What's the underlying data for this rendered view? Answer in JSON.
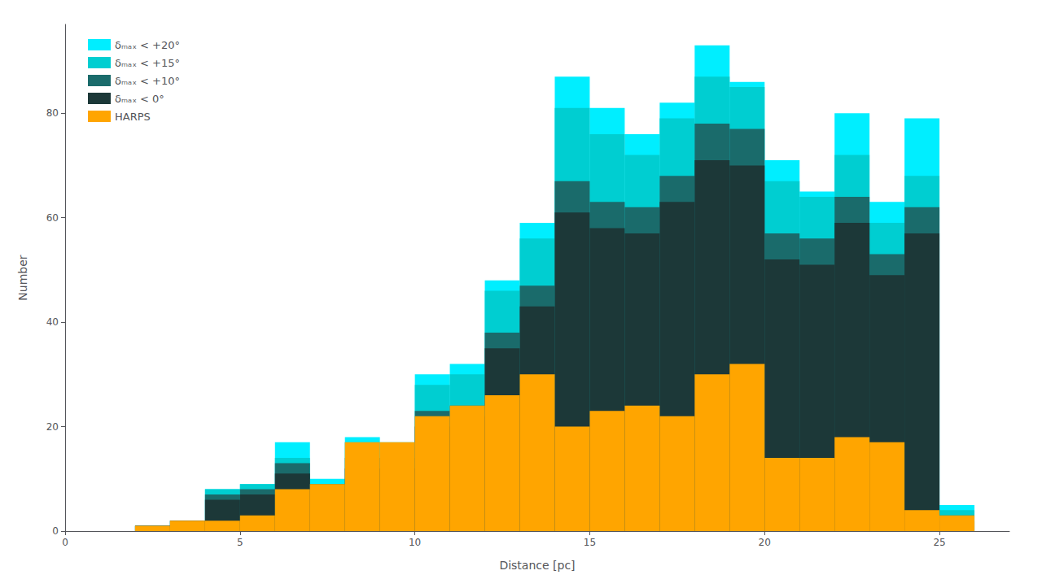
{
  "chart_data": {
    "type": "histogram",
    "xlabel": "Distance [pc]",
    "ylabel": "Number",
    "bins": [
      0,
      1,
      2,
      3,
      4,
      5,
      6,
      7,
      8,
      9,
      10,
      11,
      12,
      13,
      14,
      15,
      16,
      17,
      18,
      19,
      20,
      21,
      22,
      23,
      24,
      25,
      26,
      27
    ],
    "series": [
      {
        "name": "δₘₐₓ < +20°",
        "color": "#00EEFF",
        "values": [
          0,
          0,
          1,
          2,
          8,
          9,
          17,
          10,
          18,
          17,
          30,
          32,
          48,
          59,
          87,
          81,
          76,
          82,
          93,
          86,
          71,
          65,
          80,
          63,
          79,
          5,
          0
        ]
      },
      {
        "name": "δₘₐₓ < +15°",
        "color": "#00CED1",
        "values": [
          0,
          0,
          1,
          2,
          8,
          9,
          14,
          9,
          17,
          16,
          28,
          30,
          46,
          56,
          81,
          76,
          72,
          79,
          87,
          85,
          67,
          64,
          72,
          59,
          68,
          4,
          0
        ]
      },
      {
        "name": "δₘₐₓ < +10°",
        "color": "#1A6B6B",
        "values": [
          0,
          0,
          1,
          2,
          7,
          8,
          13,
          9,
          14,
          14,
          23,
          24,
          38,
          47,
          67,
          63,
          62,
          68,
          78,
          77,
          57,
          56,
          64,
          53,
          62,
          3,
          0
        ]
      },
      {
        "name": "δₘₐₓ < 0°",
        "color": "#1C3838",
        "values": [
          0,
          0,
          1,
          2,
          6,
          7,
          11,
          8,
          12,
          12,
          20,
          22,
          35,
          43,
          61,
          58,
          57,
          63,
          71,
          70,
          52,
          51,
          59,
          49,
          57,
          2,
          0
        ]
      },
      {
        "name": "HARPS",
        "color": "#FFA500",
        "values": [
          0,
          0,
          1,
          2,
          2,
          3,
          8,
          9,
          17,
          17,
          22,
          24,
          26,
          30,
          20,
          23,
          24,
          22,
          30,
          32,
          14,
          14,
          18,
          17,
          4,
          3,
          0
        ]
      }
    ],
    "xlim": [
      0,
      27
    ],
    "xticks": [
      0,
      5,
      10,
      15,
      20,
      25
    ],
    "ylim": [
      0,
      97
    ],
    "yticks": [
      0,
      20,
      40,
      60,
      80
    ],
    "grid": false,
    "legend": "upper left"
  }
}
